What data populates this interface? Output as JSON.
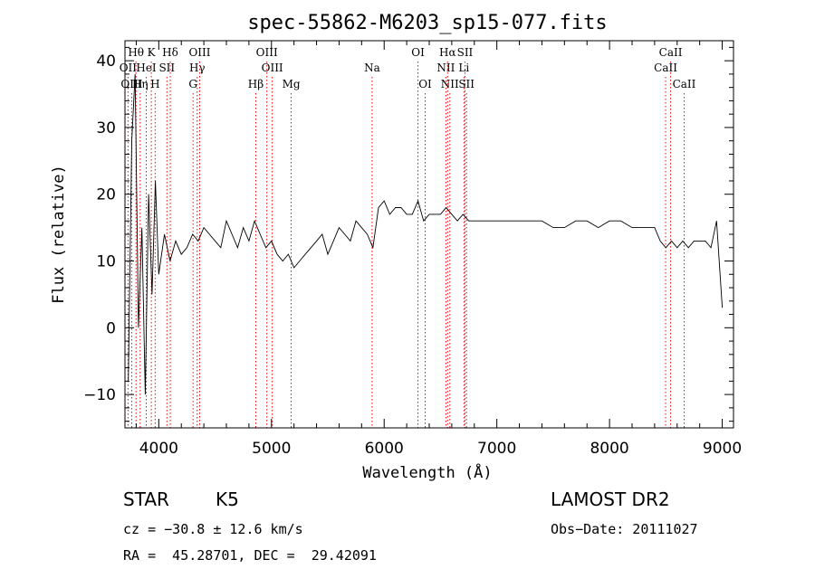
{
  "chart_data": {
    "type": "line",
    "title": "spec-55862-M6203_sp15-077.fits",
    "xlabel": "Wavelength (Å)",
    "ylabel": "Flux (relative)",
    "xlim": [
      3700,
      9100
    ],
    "ylim": [
      -15,
      43
    ],
    "xticks": [
      4000,
      5000,
      6000,
      7000,
      8000,
      9000
    ],
    "yticks": [
      -10,
      0,
      10,
      20,
      30,
      40
    ],
    "grid": false,
    "line_color": "#000000",
    "marker_color": "#ff0000",
    "series": [
      {
        "x": [
          3730,
          3760,
          3790,
          3820,
          3850,
          3880,
          3910,
          3940,
          3970,
          4000,
          4050,
          4100,
          4150,
          4200,
          4250,
          4300,
          4350,
          4400,
          4450,
          4500,
          4550,
          4600,
          4650,
          4700,
          4750,
          4800,
          4850,
          4900,
          4950,
          5000,
          5050,
          5100,
          5150,
          5200,
          5250,
          5300,
          5350,
          5400,
          5450,
          5500,
          5550,
          5600,
          5650,
          5700,
          5750,
          5800,
          5850,
          5900,
          5950,
          6000,
          6050,
          6100,
          6150,
          6200,
          6250,
          6300,
          6350,
          6400,
          6450,
          6500,
          6550,
          6600,
          6650,
          6700,
          6750,
          6800,
          6900,
          7000,
          7100,
          7200,
          7300,
          7400,
          7500,
          7600,
          7700,
          7800,
          7900,
          8000,
          8100,
          8200,
          8300,
          8400,
          8450,
          8500,
          8550,
          8600,
          8650,
          8700,
          8750,
          8800,
          8850,
          8900,
          8950,
          9000
        ],
        "y": [
          -8,
          28,
          38,
          0,
          15,
          -10,
          20,
          5,
          22,
          8,
          14,
          10,
          13,
          11,
          12,
          14,
          13,
          15,
          14,
          13,
          12,
          16,
          14,
          12,
          15,
          13,
          16,
          14,
          12,
          13,
          11,
          10,
          11,
          9,
          10,
          11,
          12,
          13,
          14,
          11,
          13,
          15,
          14,
          13,
          16,
          15,
          14,
          12,
          18,
          19,
          17,
          18,
          18,
          17,
          17,
          19,
          16,
          17,
          17,
          17,
          18,
          17,
          16,
          17,
          16,
          16,
          16,
          16,
          16,
          16,
          16,
          16,
          15,
          15,
          16,
          16,
          15,
          16,
          16,
          15,
          15,
          15,
          13,
          12,
          13,
          12,
          13,
          12,
          13,
          13,
          13,
          12,
          16,
          3
        ]
      }
    ],
    "emission_lines": [
      {
        "name": "Hθ",
        "wavelength": 3798,
        "row": 1
      },
      {
        "name": "K",
        "wavelength": 3934,
        "row": 1
      },
      {
        "name": "Hδ",
        "wavelength": 4102,
        "row": 1
      },
      {
        "name": "OIII",
        "wavelength": 4363,
        "row": 1
      },
      {
        "name": "OIII",
        "wavelength": 4959,
        "row": 1
      },
      {
        "name": "OI",
        "wavelength": 6300,
        "row": 1
      },
      {
        "name": "Hα",
        "wavelength": 6563,
        "row": 1
      },
      {
        "name": "SII",
        "wavelength": 6717,
        "row": 1
      },
      {
        "name": "CaII",
        "wavelength": 8542,
        "row": 1
      },
      {
        "name": "OII",
        "wavelength": 3727,
        "row": 2
      },
      {
        "name": "HeI",
        "wavelength": 3889,
        "row": 2
      },
      {
        "name": "SII",
        "wavelength": 4072,
        "row": 2
      },
      {
        "name": "Hγ",
        "wavelength": 4341,
        "row": 2
      },
      {
        "name": "OIII",
        "wavelength": 5007,
        "row": 2
      },
      {
        "name": "Na",
        "wavelength": 5893,
        "row": 2
      },
      {
        "name": "NII",
        "wavelength": 6548,
        "row": 2
      },
      {
        "name": "Li",
        "wavelength": 6708,
        "row": 2
      },
      {
        "name": "CaII",
        "wavelength": 8498,
        "row": 2
      },
      {
        "name": "OIII",
        "wavelength": 3760,
        "row": 3
      },
      {
        "name": "Hη",
        "wavelength": 3835,
        "row": 3
      },
      {
        "name": "H",
        "wavelength": 3968,
        "row": 3
      },
      {
        "name": "G",
        "wavelength": 4304,
        "row": 3
      },
      {
        "name": "Hβ",
        "wavelength": 4861,
        "row": 3
      },
      {
        "name": "Mg",
        "wavelength": 5175,
        "row": 3
      },
      {
        "name": "OI",
        "wavelength": 6364,
        "row": 3
      },
      {
        "name": "NII",
        "wavelength": 6583,
        "row": 3
      },
      {
        "name": "SII",
        "wavelength": 6731,
        "row": 3
      },
      {
        "name": "CaII",
        "wavelength": 8662,
        "row": 3
      }
    ]
  },
  "info": {
    "object_class": "STAR",
    "subclass": "K5",
    "survey": "LAMOST DR2",
    "redshift": "cz = −30.8 ± 12.6 km/s",
    "obs_date": "Obs−Date: 20111027",
    "coords": "RA =  45.28701, DEC =  29.42091"
  }
}
